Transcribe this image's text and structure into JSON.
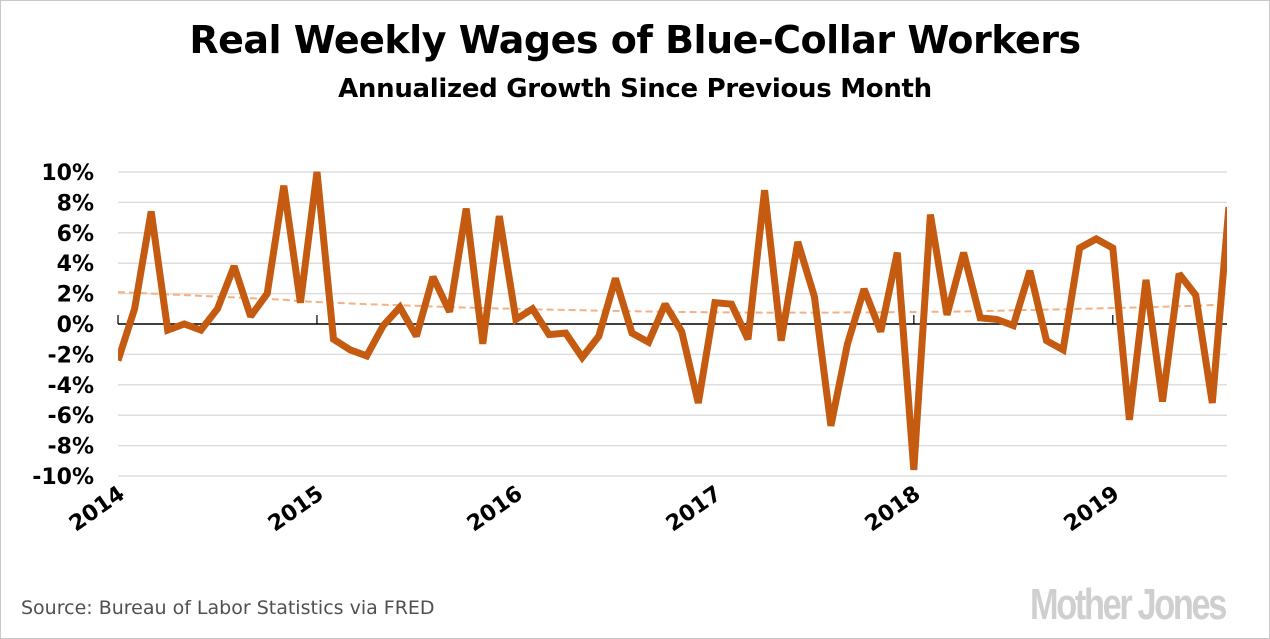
{
  "chart_data": {
    "type": "line",
    "title": "Real Weekly Wages of Blue-Collar Workers",
    "subtitle": "Annualized Growth Since Previous Month",
    "xlabel": "",
    "ylabel": "",
    "ylim": [
      -10,
      10
    ],
    "yticks": [
      10,
      8,
      6,
      4,
      2,
      0,
      -2,
      -4,
      -6,
      -8,
      -10
    ],
    "ytick_labels": [
      "10%",
      "8%",
      "6%",
      "4%",
      "2%",
      "0%",
      "-2%",
      "-4%",
      "-6%",
      "-8%",
      "-10%"
    ],
    "xtick_labels": [
      "2014",
      "2015",
      "2016",
      "2017",
      "2018",
      "2019"
    ],
    "xtick_month_index": [
      0,
      12,
      24,
      36,
      48,
      60
    ],
    "x_start": "2014-01",
    "x_end": "2019-08",
    "grid": true,
    "legend": "none",
    "series": [
      {
        "name": "Monthly annualized growth",
        "color": "#C55A11",
        "style": "solid",
        "values": [
          -2.4,
          1.0,
          7.4,
          -0.4,
          0.0,
          -0.4,
          1.0,
          3.8,
          0.5,
          2.0,
          9.1,
          1.4,
          10.0,
          -1.0,
          -1.7,
          -2.1,
          -0.1,
          1.1,
          -0.8,
          3.1,
          0.8,
          7.6,
          -1.3,
          7.1,
          0.3,
          1.0,
          -0.7,
          -0.6,
          -2.2,
          -0.8,
          3.0,
          -0.6,
          -1.2,
          1.3,
          -0.5,
          -5.2,
          1.4,
          1.3,
          -1.0,
          8.8,
          -1.1,
          5.4,
          1.8,
          -6.7,
          -1.3,
          2.3,
          -0.5,
          4.7,
          -9.6,
          7.2,
          0.6,
          4.7,
          0.4,
          0.3,
          -0.1,
          3.5,
          -1.1,
          -1.7,
          5.0,
          5.6,
          5.0,
          -6.3,
          2.9,
          -5.1,
          3.3,
          1.9,
          -5.2,
          7.7
        ]
      },
      {
        "name": "Trend",
        "color": "#F4B183",
        "style": "dashed",
        "values": [
          2.1,
          2.05,
          2.0,
          1.95,
          1.9,
          1.85,
          1.8,
          1.75,
          1.7,
          1.65,
          1.6,
          1.5,
          1.45,
          1.4,
          1.35,
          1.3,
          1.27,
          1.23,
          1.2,
          1.15,
          1.12,
          1.08,
          1.05,
          1.02,
          1.0,
          0.97,
          0.95,
          0.92,
          0.9,
          0.88,
          0.86,
          0.84,
          0.82,
          0.8,
          0.79,
          0.78,
          0.77,
          0.76,
          0.75,
          0.75,
          0.75,
          0.75,
          0.75,
          0.75,
          0.76,
          0.76,
          0.77,
          0.78,
          0.79,
          0.8,
          0.81,
          0.83,
          0.85,
          0.87,
          0.9,
          0.92,
          0.95,
          0.97,
          1.0,
          1.02,
          1.05,
          1.08,
          1.1,
          1.13,
          1.17,
          1.2,
          1.25,
          1.3
        ]
      }
    ]
  },
  "header": {
    "title": "Real Weekly Wages of Blue-Collar Workers",
    "subtitle": "Annualized Growth Since Previous Month"
  },
  "footer": {
    "source": "Source: Bureau of Labor Statistics via FRED",
    "logo": "Mother Jones"
  }
}
